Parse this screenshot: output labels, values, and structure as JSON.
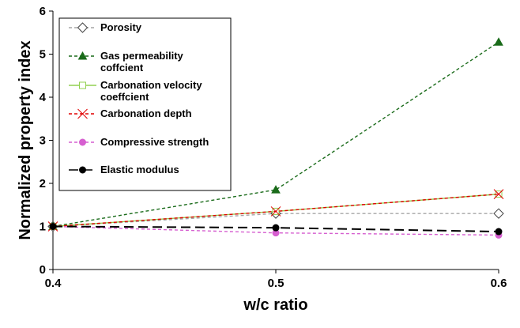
{
  "chart_data": {
    "type": "line",
    "xlabel": "w/c ratio",
    "ylabel": "Normalized property index",
    "x": [
      0.4,
      0.5,
      0.6
    ],
    "x_tick_labels": [
      "0.4",
      "0.5",
      "0.6"
    ],
    "xlim": [
      0.4,
      0.6
    ],
    "ylim": [
      0,
      6
    ],
    "y_ticks": [
      0,
      1,
      2,
      3,
      4,
      5,
      6
    ],
    "grid": false,
    "legend_position": "top-left",
    "series": [
      {
        "name_lines": [
          "Porosity"
        ],
        "values": [
          1.0,
          1.3,
          1.3
        ],
        "color": "#a6a6a6",
        "dash": "4,3",
        "marker": "diamond-open"
      },
      {
        "name_lines": [
          "Gas permeability",
          "coffcient"
        ],
        "values": [
          1.0,
          1.85,
          5.28
        ],
        "color": "#1a6b1a",
        "dash": "4,3",
        "marker": "triangle"
      },
      {
        "name_lines": [
          "Carbonation velocity",
          "coeffcient"
        ],
        "values": [
          1.0,
          1.35,
          1.75
        ],
        "color": "#92d050",
        "dash": "",
        "marker": "square-open"
      },
      {
        "name_lines": [
          "Carbonation depth"
        ],
        "values": [
          1.0,
          1.35,
          1.75
        ],
        "color": "#e00000",
        "dash": "4,3",
        "marker": "x"
      },
      {
        "name_lines": [
          "Compressive strength"
        ],
        "values": [
          1.0,
          0.85,
          0.8
        ],
        "color": "#d65fd0",
        "dash": "4,3",
        "marker": "circle"
      },
      {
        "name_lines": [
          "Elastic modulus"
        ],
        "values": [
          1.0,
          0.97,
          0.88
        ],
        "color": "#000000",
        "dash": "12,6",
        "marker": "circle"
      }
    ]
  }
}
